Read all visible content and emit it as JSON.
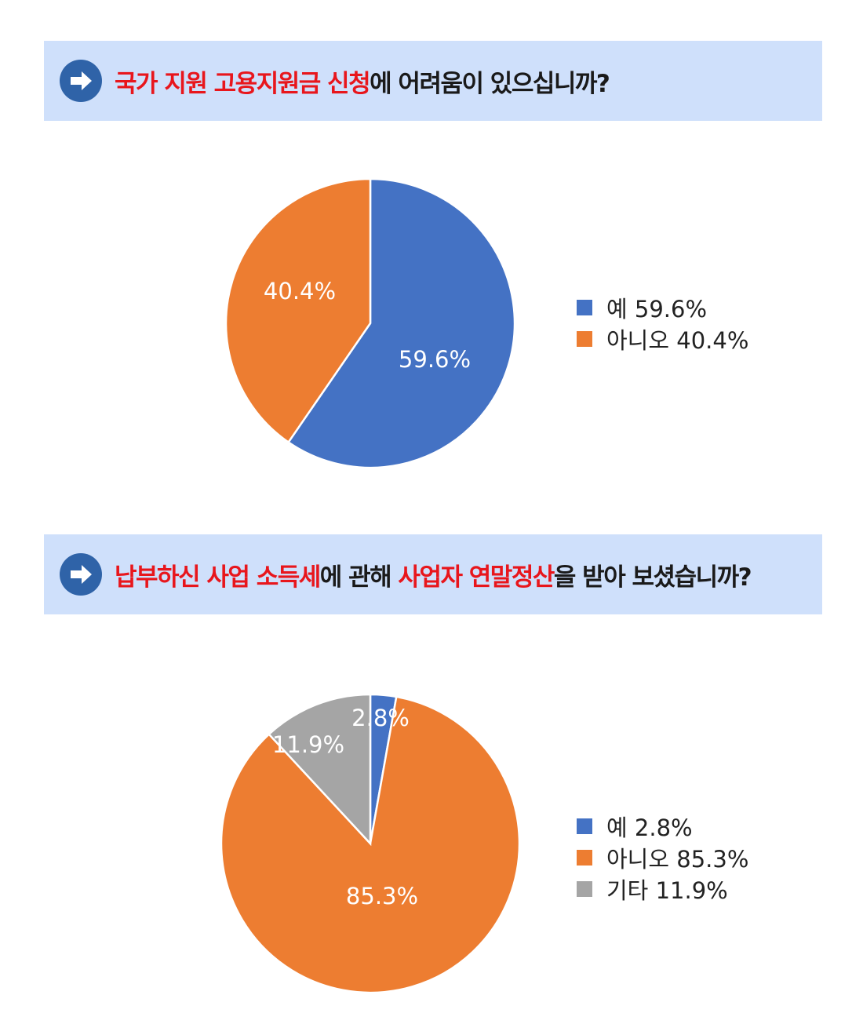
{
  "colors": {
    "blue": "#4472c4",
    "orange": "#ed7d31",
    "gray": "#a5a5a5",
    "highlight": "#e8161c",
    "banner_bg": "#cfe0fb"
  },
  "q1": {
    "title_red": "국가 지원 고용지원금 신청",
    "title_rest": "에 어려움이 있으십니까?"
  },
  "q2": {
    "title_red1": "납부하신 사업 소득세",
    "title_mid": "에 관해 ",
    "title_red2": "사업자 연말정산",
    "title_rest": "을 받아 보셨습니까?"
  },
  "chart_data": [
    {
      "type": "pie",
      "categories": [
        "예",
        "아니오"
      ],
      "values": [
        59.6,
        40.4
      ],
      "slice_labels": [
        "59.6%",
        "40.4%"
      ],
      "legend": [
        "예 59.6%",
        "아니오 40.4%"
      ],
      "colors": [
        "#4472c4",
        "#ed7d31"
      ],
      "legend_position": "right"
    },
    {
      "type": "pie",
      "categories": [
        "예",
        "아니오",
        "기타"
      ],
      "values": [
        2.8,
        85.3,
        11.9
      ],
      "slice_labels": [
        "2.8%",
        "85.3%",
        "11.9%"
      ],
      "legend": [
        "예 2.8%",
        "아니오 85.3%",
        "기타 11.9%"
      ],
      "colors": [
        "#4472c4",
        "#ed7d31",
        "#a5a5a5"
      ],
      "legend_position": "right"
    }
  ]
}
